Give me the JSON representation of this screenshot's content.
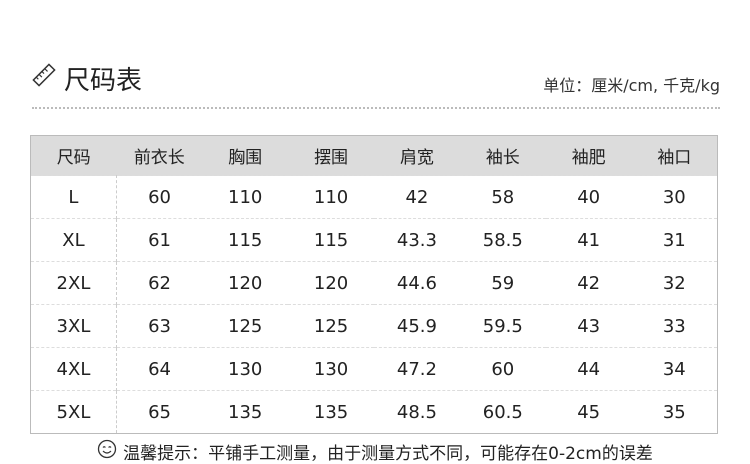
{
  "header": {
    "title": "尺码表",
    "icon": "ruler-icon",
    "unit": "单位：厘米/cm, 千克/kg"
  },
  "table": {
    "columns": [
      "尺码",
      "前衣长",
      "胸围",
      "摆围",
      "肩宽",
      "袖长",
      "袖肥",
      "袖口"
    ],
    "rows": [
      [
        "L",
        "60",
        "110",
        "110",
        "42",
        "58",
        "40",
        "30"
      ],
      [
        "XL",
        "61",
        "115",
        "115",
        "43.3",
        "58.5",
        "41",
        "31"
      ],
      [
        "2XL",
        "62",
        "120",
        "120",
        "44.6",
        "59",
        "42",
        "32"
      ],
      [
        "3XL",
        "63",
        "125",
        "125",
        "45.9",
        "59.5",
        "43",
        "33"
      ],
      [
        "4XL",
        "64",
        "130",
        "130",
        "47.2",
        "60",
        "44",
        "34"
      ],
      [
        "5XL",
        "65",
        "135",
        "135",
        "48.5",
        "60.5",
        "45",
        "35"
      ]
    ]
  },
  "footer": {
    "icon": "smiley-icon",
    "tip": "温馨提示：平铺手工测量，由于测量方式不同，可能存在0-2cm的误差"
  }
}
